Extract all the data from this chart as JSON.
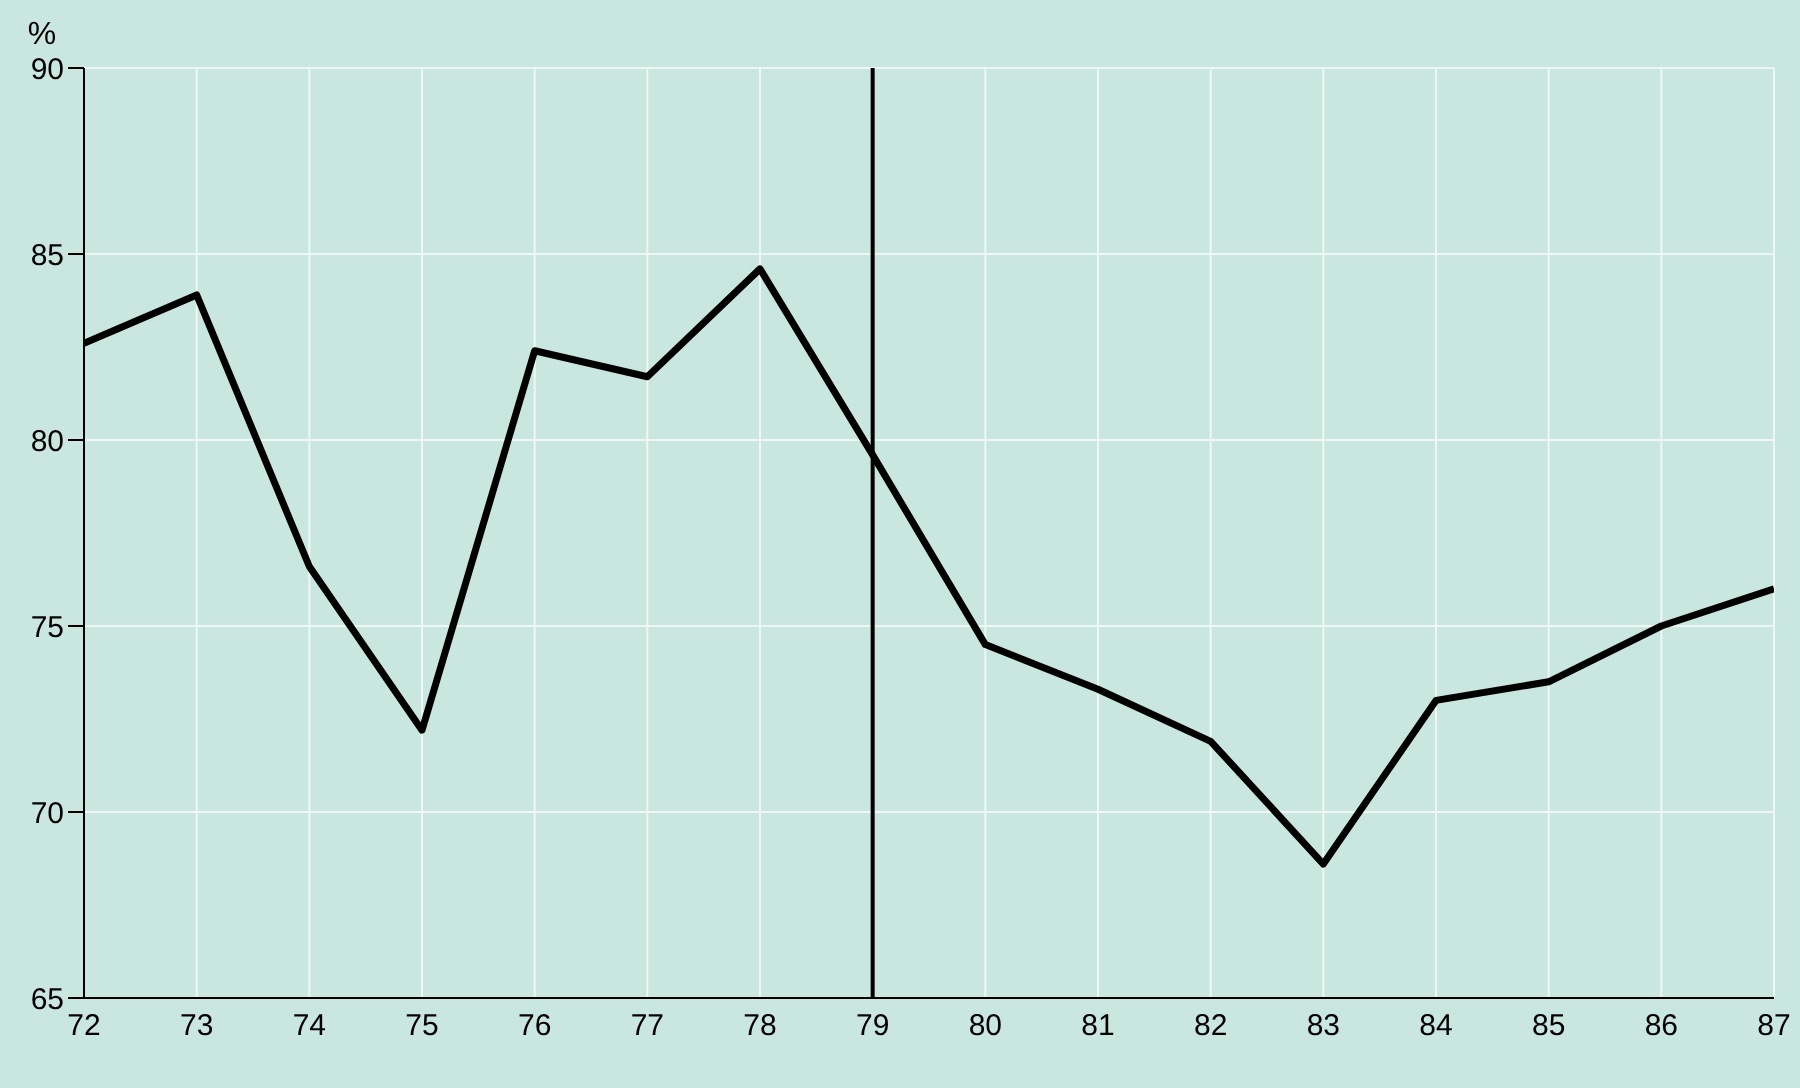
{
  "chart_data": {
    "type": "line",
    "ylabel": "%",
    "x": [
      72,
      73,
      74,
      75,
      76,
      77,
      78,
      79,
      80,
      81,
      82,
      83,
      84,
      85,
      86,
      87
    ],
    "series": [
      {
        "color": "#000000",
        "values": [
          82.6,
          83.9,
          76.6,
          72.2,
          82.4,
          81.7,
          84.6,
          79.6,
          74.5,
          73.3,
          71.9,
          68.6,
          73.0,
          73.5,
          75.0,
          76.0
        ]
      }
    ],
    "xlim": [
      72,
      87
    ],
    "xticks": [
      72,
      73,
      74,
      75,
      76,
      77,
      78,
      79,
      80,
      81,
      82,
      83,
      84,
      85,
      86,
      87
    ],
    "ylim": [
      65,
      90
    ],
    "yticks": [
      65,
      70,
      75,
      80,
      85,
      90
    ],
    "ref_lines": [
      {
        "axis": "x",
        "value": 79,
        "color": "#000000"
      }
    ],
    "grid": true,
    "marker": "none",
    "line_style": "solid"
  }
}
